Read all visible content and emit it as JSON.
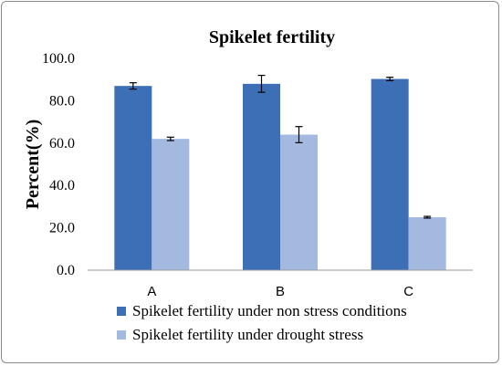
{
  "chart_data": {
    "type": "bar",
    "title": "Spikelet fertility",
    "xlabel": "",
    "ylabel": "Percent(%)",
    "ylim": [
      0,
      100
    ],
    "yticks": [
      "0.0",
      "20.0",
      "40.0",
      "60.0",
      "80.0",
      "100.0"
    ],
    "categories": [
      "A",
      "B",
      "C"
    ],
    "series": [
      {
        "name": "Spikelet fertility under non stress conditions",
        "values": [
          87.0,
          88.0,
          90.3
        ],
        "errors": [
          1.5,
          4.0,
          0.8
        ],
        "color": "#3d6fb6"
      },
      {
        "name": "Spikelet fertility under drought stress",
        "values": [
          62.0,
          64.0,
          25.0
        ],
        "errors": [
          0.8,
          3.8,
          0.4
        ],
        "color": "#a3b9e0"
      }
    ],
    "legend": "bottom",
    "grid": false
  }
}
